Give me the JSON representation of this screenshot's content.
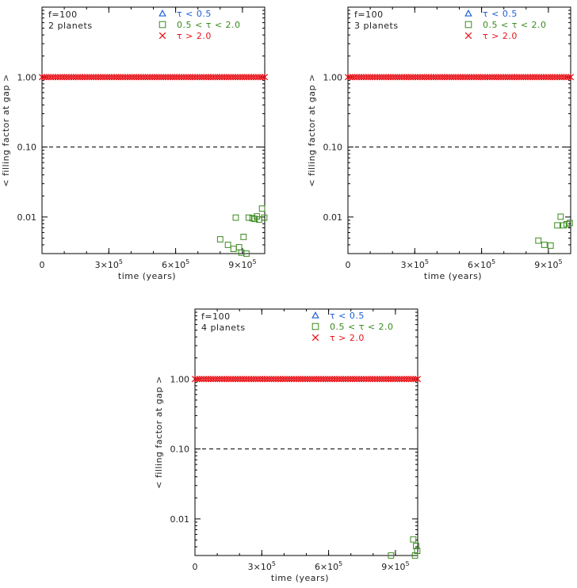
{
  "chart_data": [
    {
      "type": "scatter",
      "annotation": [
        "f=100",
        "2 planets"
      ],
      "xlabel": "time (years)",
      "ylabel": "< filling factor at gap >",
      "xlim": [
        0,
        1000000
      ],
      "ylim": [
        0.003,
        10
      ],
      "yscale": "log",
      "xticks": [
        {
          "value": 0,
          "mant": "0",
          "exp": ""
        },
        {
          "value": 300000,
          "mant": "3×10",
          "exp": "5"
        },
        {
          "value": 600000,
          "mant": "6×10",
          "exp": "5"
        },
        {
          "value": 900000,
          "mant": "9×10",
          "exp": "5"
        }
      ],
      "yticks": [
        {
          "value": 0.01,
          "label": "0.01"
        },
        {
          "value": 0.1,
          "label": "0.10"
        },
        {
          "value": 1.0,
          "label": "1.00"
        }
      ],
      "reference_line": {
        "y": 0.1,
        "style": "dashed"
      },
      "legend": {
        "position": "top",
        "entries": [
          {
            "marker": "triangle",
            "label": "τ < 0.5",
            "color": "#1f5fd6"
          },
          {
            "marker": "square",
            "label": "0.5 < τ < 2.0",
            "color": "#3a8a1e"
          },
          {
            "marker": "x",
            "label": "τ > 2.0",
            "color": "#e8141a"
          }
        ]
      },
      "series": [
        {
          "name": "τ < 0.5",
          "marker": "triangle",
          "color": "#1f5fd6",
          "x": [],
          "y": []
        },
        {
          "name": "0.5 < τ < 2.0",
          "marker": "square",
          "color": "#3a8a1e",
          "x": [
            800000,
            835000,
            860000,
            870000,
            885000,
            895000,
            905000,
            918000,
            928000,
            945000,
            955000,
            965000,
            975000,
            988000,
            998000
          ],
          "y": [
            0.0048,
            0.004,
            0.0035,
            0.0098,
            0.0037,
            0.0031,
            0.0052,
            0.003,
            0.0098,
            0.0096,
            0.0094,
            0.0102,
            0.0092,
            0.0132,
            0.0098
          ]
        },
        {
          "name": "τ > 2.0",
          "marker": "x",
          "color": "#e8141a",
          "x_range": [
            0,
            1000000
          ],
          "count": 100,
          "y_const": 1.0
        }
      ]
    },
    {
      "type": "scatter",
      "annotation": [
        "f=100",
        "3 planets"
      ],
      "xlabel": "time (years)",
      "ylabel": "< filling factor at gap >",
      "xlim": [
        0,
        1000000
      ],
      "ylim": [
        0.003,
        10
      ],
      "yscale": "log",
      "xticks": [
        {
          "value": 0,
          "mant": "0",
          "exp": ""
        },
        {
          "value": 300000,
          "mant": "3×10",
          "exp": "5"
        },
        {
          "value": 600000,
          "mant": "6×10",
          "exp": "5"
        },
        {
          "value": 900000,
          "mant": "9×10",
          "exp": "5"
        }
      ],
      "yticks": [
        {
          "value": 0.01,
          "label": "0.01"
        },
        {
          "value": 0.1,
          "label": "0.10"
        },
        {
          "value": 1.0,
          "label": "1.00"
        }
      ],
      "reference_line": {
        "y": 0.1,
        "style": "dashed"
      },
      "legend": {
        "position": "top",
        "entries": [
          {
            "marker": "triangle",
            "label": "τ < 0.5",
            "color": "#1f5fd6"
          },
          {
            "marker": "square",
            "label": "0.5 < τ < 2.0",
            "color": "#3a8a1e"
          },
          {
            "marker": "x",
            "label": "τ > 2.0",
            "color": "#e8141a"
          }
        ]
      },
      "series": [
        {
          "name": "τ < 0.5",
          "marker": "triangle",
          "color": "#1f5fd6",
          "x": [],
          "y": []
        },
        {
          "name": "0.5 < τ < 2.0",
          "marker": "square",
          "color": "#3a8a1e",
          "x": [
            855000,
            882000,
            910000,
            940000,
            955000,
            968000,
            982000,
            996000
          ],
          "y": [
            0.0046,
            0.004,
            0.0039,
            0.0076,
            0.0101,
            0.0076,
            0.0079,
            0.0082
          ]
        },
        {
          "name": "τ > 2.0",
          "marker": "x",
          "color": "#e8141a",
          "x_range": [
            0,
            1000000
          ],
          "count": 100,
          "y_const": 1.0
        }
      ]
    },
    {
      "type": "scatter",
      "annotation": [
        "f=100",
        "4 planets"
      ],
      "xlabel": "time (years)",
      "ylabel": "< filling factor at gap >",
      "xlim": [
        0,
        1000000
      ],
      "ylim": [
        0.003,
        10
      ],
      "yscale": "log",
      "xticks": [
        {
          "value": 0,
          "mant": "0",
          "exp": ""
        },
        {
          "value": 300000,
          "mant": "3×10",
          "exp": "5"
        },
        {
          "value": 600000,
          "mant": "6×10",
          "exp": "5"
        },
        {
          "value": 900000,
          "mant": "9×10",
          "exp": "5"
        }
      ],
      "yticks": [
        {
          "value": 0.01,
          "label": "0.01"
        },
        {
          "value": 0.1,
          "label": "0.10"
        },
        {
          "value": 1.0,
          "label": "1.00"
        }
      ],
      "reference_line": {
        "y": 0.1,
        "style": "dashed"
      },
      "legend": {
        "position": "top",
        "entries": [
          {
            "marker": "triangle",
            "label": "τ < 0.5",
            "color": "#1f5fd6"
          },
          {
            "marker": "square",
            "label": "0.5 < τ < 2.0",
            "color": "#3a8a1e"
          },
          {
            "marker": "x",
            "label": "τ > 2.0",
            "color": "#e8141a"
          }
        ]
      },
      "series": [
        {
          "name": "τ < 0.5",
          "marker": "triangle",
          "color": "#1f5fd6",
          "x": [],
          "y": []
        },
        {
          "name": "0.5 < τ < 2.0",
          "marker": "square",
          "color": "#3a8a1e",
          "x": [
            880000,
            980000,
            988000,
            993000,
            998000
          ],
          "y": [
            0.003,
            0.0051,
            0.003,
            0.0041,
            0.0035
          ]
        },
        {
          "name": "τ > 2.0",
          "marker": "x",
          "color": "#e8141a",
          "x_range": [
            0,
            1000000
          ],
          "count": 100,
          "y_const": 1.0
        }
      ]
    }
  ]
}
